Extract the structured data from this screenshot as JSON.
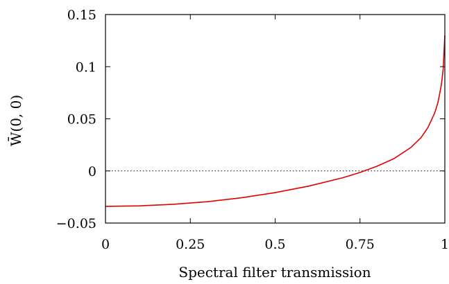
{
  "chart_data": {
    "type": "line",
    "title": "",
    "xlabel": "Spectral filter transmission",
    "ylabel": "W̄(0, 0)",
    "xlim": [
      0,
      1
    ],
    "ylim": [
      -0.05,
      0.15
    ],
    "xticks": [
      0,
      0.25,
      0.5,
      0.75,
      1
    ],
    "xtick_labels": [
      "0",
      "0.25",
      "0.5",
      "0.75",
      "1"
    ],
    "yticks": [
      -0.05,
      0,
      0.05,
      0.1,
      0.15
    ],
    "ytick_labels": [
      "−0.05",
      "0",
      "0.05",
      "0.1",
      "0.15"
    ],
    "grid": false,
    "reference_line": {
      "y": 0,
      "style": "dotted"
    },
    "series": [
      {
        "color": "#e00000",
        "x": [
          0,
          0.1,
          0.2,
          0.3,
          0.4,
          0.5,
          0.6,
          0.7,
          0.75,
          0.8,
          0.85,
          0.9,
          0.93,
          0.95,
          0.97,
          0.98,
          0.99,
          0.995,
          1.0
        ],
        "y": [
          -0.034,
          -0.0335,
          -0.032,
          -0.0295,
          -0.0258,
          -0.0208,
          -0.0145,
          -0.0065,
          -0.0015,
          0.0045,
          0.0118,
          0.0225,
          0.032,
          0.0415,
          0.0555,
          0.066,
          0.083,
          0.097,
          0.13
        ]
      }
    ]
  }
}
